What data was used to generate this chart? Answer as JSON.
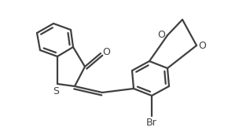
{
  "bg_color": "#ffffff",
  "line_color": "#404040",
  "line_width": 1.6,
  "figsize": [
    3.04,
    1.76
  ],
  "dpi": 100,
  "xlim": [
    0,
    304
  ],
  "ylim": [
    0,
    176
  ]
}
